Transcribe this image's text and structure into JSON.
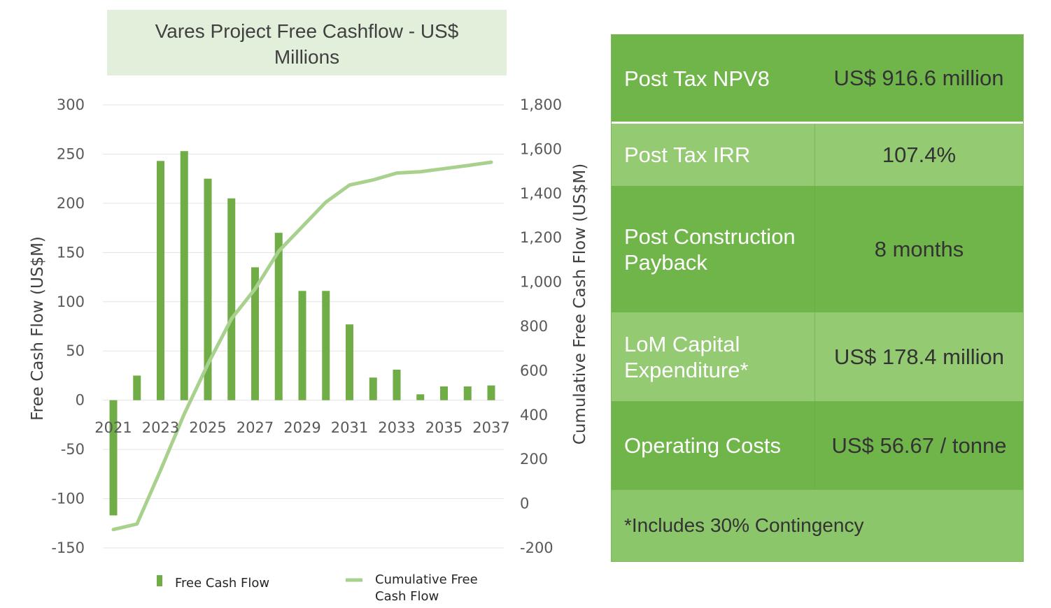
{
  "chart_data": {
    "type": "bar+line",
    "title": "Vares Project Free Cashflow - US$ Millions",
    "categories": [
      "2021",
      "2022",
      "2023",
      "2024",
      "2025",
      "2026",
      "2027",
      "2028",
      "2029",
      "2030",
      "2031",
      "2032",
      "2033",
      "2034",
      "2035",
      "2036",
      "2037"
    ],
    "x_tick_labels": [
      "2021",
      "2023",
      "2025",
      "2027",
      "2029",
      "2031",
      "2033",
      "2035",
      "2037"
    ],
    "series": [
      {
        "name": "Free Cash Flow",
        "type": "bar",
        "axis": "left",
        "color": "#70ad47",
        "values": [
          -117,
          25,
          243,
          253,
          225,
          205,
          135,
          170,
          111,
          111,
          77,
          23,
          31,
          6,
          14,
          14,
          15
        ]
      },
      {
        "name": "Cumulative Free Cash Flow",
        "type": "line",
        "axis": "right",
        "color": "#a9d18e",
        "values": [
          -117,
          -92,
          151,
          404,
          629,
          834,
          969,
          1139,
          1250,
          1361,
          1438,
          1461,
          1492,
          1498,
          1512,
          1526,
          1541
        ]
      }
    ],
    "ylabel": "Free Cash Flow (US$M)",
    "ylabel_right": "Cumulative Free Cash Flow (US$M)",
    "ylim": [
      -150,
      300
    ],
    "yticks": [
      300,
      250,
      200,
      150,
      100,
      50,
      0,
      -50,
      -100,
      -150
    ],
    "ylim_right": [
      -200,
      1800
    ],
    "yticks_right_labels": [
      "1,800",
      "1,600",
      "1,400",
      "1,200",
      "1,000",
      "800",
      "600",
      "400",
      "200",
      "0",
      "-200"
    ],
    "grid": true,
    "legend_position": "bottom"
  },
  "legend": {
    "bar_label": "Free Cash Flow",
    "line_label_1": "Cumulative Free",
    "line_label_2": "Cash Flow"
  },
  "metrics": {
    "npv_label": "Post Tax NPV8",
    "npv_value": "US$ 916.6 million",
    "irr_label": "Post Tax IRR",
    "irr_value": "107.4%",
    "payback_label_1": "Post Construction",
    "payback_label_2": "Payback",
    "payback_value": "8 months",
    "capex_label_1": "LoM Capital",
    "capex_label_2": "Expenditure*",
    "capex_value": "US$ 178.4 million",
    "opex_label": "Operating Costs",
    "opex_value": "US$ 56.67 / tonne",
    "footnote": "*Includes 30% Contingency"
  }
}
